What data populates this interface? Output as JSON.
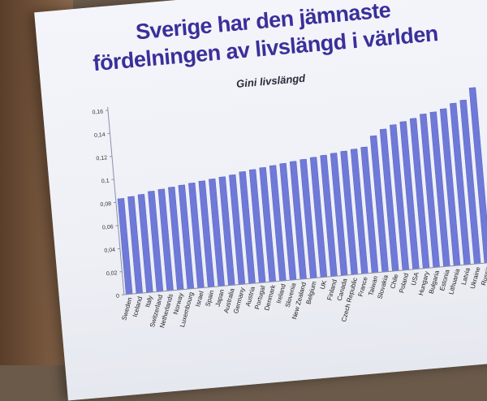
{
  "slide": {
    "title_line1": "Sverige har den jämnaste",
    "title_line2": "fördelningen av livslängd i världen"
  },
  "colors": {
    "bar": "#6f79d8",
    "bar_edge": "#4b55b8",
    "title": "#3a2f9a",
    "axis": "#8a8fa6"
  },
  "chart_data": {
    "type": "bar",
    "title": "Gini livslängd",
    "xlabel": "",
    "ylabel": "",
    "ylim": [
      0,
      0.16
    ],
    "yticks": [
      0,
      0.02,
      0.04,
      0.06,
      0.08,
      0.1,
      0.12,
      0.14,
      0.16
    ],
    "ytick_labels": [
      "0",
      "0,02",
      "0,04",
      "0,06",
      "0,08",
      "0,1",
      "0,12",
      "0,14",
      "0,16"
    ],
    "grid": false,
    "categories": [
      "Sweden",
      "Iceland",
      "Italy",
      "Switzerland",
      "Netherlands",
      "Norway",
      "Luxembourg",
      "Israel",
      "Spain",
      "Japan",
      "Australia",
      "Germany",
      "Austria",
      "Portugal",
      "Denmark",
      "Ireland",
      "Slovenia",
      "New Zealand",
      "Belgium",
      "UK",
      "Finland",
      "Canada",
      "Czech Republic",
      "France",
      "Taiwan",
      "Slovakia",
      "Chile",
      "Poland",
      "USA",
      "Hungary",
      "Bulgaria",
      "Estonia",
      "Lithuania",
      "Latvia",
      "Ukraine",
      "Russia"
    ],
    "values": [
      0.083,
      0.084,
      0.085,
      0.087,
      0.088,
      0.089,
      0.09,
      0.091,
      0.092,
      0.093,
      0.094,
      0.095,
      0.097,
      0.098,
      0.099,
      0.1,
      0.101,
      0.102,
      0.103,
      0.104,
      0.105,
      0.106,
      0.107,
      0.108,
      0.109,
      0.118,
      0.123,
      0.126,
      0.128,
      0.13,
      0.133,
      0.134,
      0.136,
      0.14,
      0.142,
      0.152
    ]
  }
}
